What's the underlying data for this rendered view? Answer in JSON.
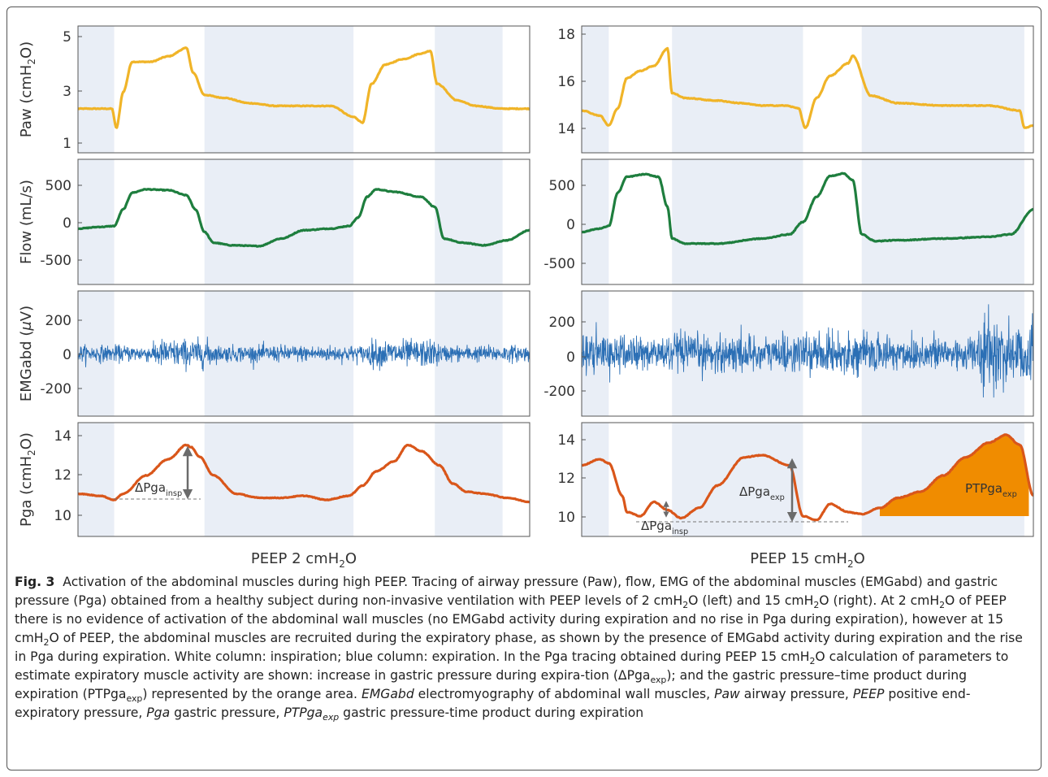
{
  "figure": {
    "colors": {
      "paw": "#f0b428",
      "flow": "#1e7e3e",
      "emg": "#2b6fb5",
      "pga": "#d9561a",
      "shade": "#e9eef6",
      "orange_area": "#f08c00"
    },
    "columns": [
      {
        "label_main": "PEEP 2 cmH",
        "label_sub": "2",
        "label_tail": "O",
        "expiration_bands_s": [
          [
            0,
            0.8
          ],
          [
            2.8,
            6.1
          ],
          [
            7.9,
            9.4
          ]
        ]
      },
      {
        "label_main": "PEEP 15 cmH",
        "label_sub": "2",
        "label_tail": "O",
        "expiration_bands_s": [
          [
            0,
            0.6
          ],
          [
            2.0,
            4.9
          ],
          [
            6.2,
            9.8
          ]
        ]
      }
    ],
    "rows": [
      {
        "id": "paw",
        "ylabel_main": "Paw (cmH",
        "ylabel_sub": "2",
        "ylabel_tail": "O)",
        "left": {
          "yticks": [
            "5",
            "3",
            "1"
          ],
          "ylim": [
            0.8,
            5.4
          ]
        },
        "right": {
          "yticks": [
            "18",
            "16",
            "14"
          ],
          "ylim": [
            13.3,
            18.4
          ]
        }
      },
      {
        "id": "flow",
        "ylabel": "Flow (mL/s)",
        "left": {
          "yticks": [
            "500",
            "0",
            "-500"
          ],
          "ylim": [
            -750,
            750
          ]
        },
        "right": {
          "yticks": [
            "500",
            "0",
            "-500"
          ],
          "ylim": [
            -750,
            750
          ]
        }
      },
      {
        "id": "emg",
        "ylabel_main": "EMGabd (",
        "ylabel_mu": "μ",
        "ylabel_tail": "V)",
        "left": {
          "yticks": [
            "200",
            "0",
            "-200"
          ],
          "ylim": [
            -340,
            340
          ]
        },
        "right": {
          "yticks": [
            "200",
            "0",
            "-200"
          ],
          "ylim": [
            -340,
            340
          ]
        }
      },
      {
        "id": "pga",
        "ylabel_main": "Pga (cmH",
        "ylabel_sub": "2",
        "ylabel_tail": "O)",
        "left": {
          "yticks": [
            "14",
            "12",
            "10"
          ],
          "ylim": [
            9.0,
            14.6
          ]
        },
        "right": {
          "yticks": [
            "14",
            "12",
            "10"
          ],
          "ylim": [
            9.0,
            14.6
          ]
        }
      }
    ],
    "annotations": {
      "left_dpga": "ΔPga",
      "left_dpga_sub": "insp",
      "right_dpga_exp": "ΔPga",
      "right_dpga_exp_sub": "exp",
      "right_dpga_insp": "ΔPga",
      "right_dpga_insp_sub": "insp",
      "right_ptp": "PTPga",
      "right_ptp_sub": "exp"
    }
  },
  "chart_data": [
    {
      "type": "line",
      "title": "PEEP 2 cmH2O",
      "series": [
        {
          "name": "Paw",
          "x": [
            0,
            0.2,
            0.5,
            0.75,
            0.85,
            1.0,
            1.2,
            1.6,
            2.0,
            2.4,
            2.55,
            2.8,
            3.2,
            3.8,
            4.4,
            5.0,
            5.6,
            6.1,
            6.3,
            6.5,
            6.8,
            7.2,
            7.6,
            7.8,
            7.95,
            8.4,
            8.8,
            9.4,
            10
          ],
          "y": [
            2.4,
            2.4,
            2.4,
            2.4,
            1.7,
            3.0,
            4.1,
            4.1,
            4.3,
            4.6,
            3.7,
            2.9,
            2.8,
            2.6,
            2.5,
            2.5,
            2.5,
            2.1,
            1.9,
            3.3,
            4.0,
            4.2,
            4.4,
            4.5,
            3.3,
            2.7,
            2.5,
            2.4,
            2.4
          ]
        },
        {
          "name": "Flow",
          "x": [
            0,
            0.5,
            0.8,
            1.0,
            1.2,
            1.5,
            2.0,
            2.4,
            2.6,
            2.8,
            3.0,
            3.4,
            4.0,
            4.5,
            5.0,
            5.6,
            6.0,
            6.2,
            6.4,
            6.6,
            7.0,
            7.6,
            7.9,
            8.1,
            8.5,
            9.0,
            9.5,
            10
          ],
          "y": [
            -80,
            -60,
            -50,
            150,
            350,
            390,
            380,
            320,
            150,
            -120,
            -250,
            -280,
            -290,
            -200,
            -100,
            -80,
            -50,
            50,
            300,
            390,
            360,
            300,
            180,
            -200,
            -250,
            -280,
            -220,
            -100
          ]
        },
        {
          "name": "EMGabd",
          "note": "noise-like signal, amplitude about ±50 μV with bursts up to about ±120 μV around x≈1.8–3.0 s and x≈6.5–8.0 s"
        },
        {
          "name": "Pga",
          "x": [
            0,
            0.5,
            0.8,
            1.0,
            1.5,
            2.0,
            2.4,
            2.5,
            2.7,
            3.0,
            3.5,
            4.0,
            4.5,
            5.0,
            5.5,
            6.0,
            6.3,
            6.6,
            7.0,
            7.3,
            7.6,
            8.0,
            8.3,
            8.6,
            9.0,
            9.5,
            10
          ],
          "y": [
            11.1,
            11.0,
            10.8,
            11.1,
            12.0,
            12.8,
            13.5,
            13.4,
            12.9,
            12.0,
            11.1,
            10.9,
            10.9,
            11.0,
            10.8,
            11.0,
            11.5,
            12.2,
            12.7,
            13.5,
            13.2,
            12.5,
            11.6,
            11.2,
            11.1,
            10.9,
            10.7
          ]
        }
      ]
    },
    {
      "type": "line",
      "title": "PEEP 15 cmH2O",
      "series": [
        {
          "name": "Paw",
          "x": [
            0,
            0.4,
            0.6,
            0.8,
            1.0,
            1.3,
            1.6,
            1.9,
            2.0,
            2.3,
            3.0,
            3.5,
            4.0,
            4.5,
            4.8,
            4.95,
            5.2,
            5.5,
            5.9,
            6.0,
            6.4,
            7.0,
            8.0,
            9.0,
            9.7,
            9.8,
            10
          ],
          "y": [
            15.0,
            14.8,
            14.4,
            15.1,
            16.3,
            16.6,
            16.8,
            17.5,
            15.7,
            15.5,
            15.4,
            15.3,
            15.2,
            15.2,
            15.1,
            14.3,
            15.5,
            16.4,
            16.9,
            17.2,
            15.6,
            15.3,
            15.2,
            15.2,
            15.0,
            14.3,
            14.4
          ]
        },
        {
          "name": "Flow",
          "x": [
            0,
            0.4,
            0.6,
            0.8,
            1.0,
            1.4,
            1.7,
            1.9,
            2.0,
            2.3,
            3.0,
            4.0,
            4.6,
            4.9,
            5.2,
            5.5,
            5.8,
            6.0,
            6.2,
            6.5,
            7.0,
            8.0,
            9.0,
            9.5,
            10
          ],
          "y": [
            -120,
            -80,
            -50,
            350,
            540,
            570,
            540,
            180,
            -200,
            -260,
            -260,
            -200,
            -150,
            0,
            300,
            550,
            580,
            500,
            -150,
            -230,
            -220,
            -200,
            -180,
            -150,
            150
          ]
        },
        {
          "name": "EMGabd",
          "note": "noise-like signal, amplitude about ±150 μV throughout, increasing to about ±340 μV at x≈9–10 s"
        },
        {
          "name": "Pga",
          "x": [
            0,
            0.4,
            0.6,
            0.9,
            1.0,
            1.3,
            1.6,
            1.9,
            2.2,
            2.6,
            3.0,
            3.6,
            4.0,
            4.6,
            4.9,
            5.2,
            5.5,
            5.9,
            6.2,
            6.6,
            7.0,
            7.5,
            8.0,
            8.5,
            9.0,
            9.4,
            9.7,
            10
          ],
          "y": [
            12.5,
            12.8,
            12.6,
            11.0,
            10.2,
            10.0,
            10.7,
            10.3,
            9.9,
            10.4,
            11.5,
            12.9,
            13.0,
            12.5,
            10.0,
            9.8,
            10.6,
            10.2,
            10.1,
            10.4,
            10.9,
            11.2,
            12.0,
            12.9,
            13.6,
            14.0,
            13.5,
            11.0
          ]
        }
      ]
    }
  ],
  "caption": {
    "fig_label": "Fig. 3",
    "s1": "Activation of the abdominal muscles during high PEEP. Tracing of airway pressure (Paw), flow, EMG of the abdominal muscles (EMGabd) and gastric pressure (Pga) obtained from a healthy subject during non-invasive ventilation with PEEP levels of 2 cmH",
    "s2": "O (left) and 15 cmH",
    "s3": "O (right). At 2 cmH",
    "s4": "O of PEEP there is no evidence of activation of the abdominal wall muscles (no EMGabd activity during expiration and no rise in Pga during expiration), however at 15 cmH",
    "s5": "O of PEEP, the abdominal muscles are recruited during the expiratory phase, as shown by the presence of EMGabd activity during expiration and the rise in Pga during expiration. White column: inspiration; blue column: expiration. In the Pga tracing obtained during PEEP 15 cmH",
    "s6": "O calculation of parameters to estimate expiratory muscle activity are shown: increase in gastric pressure during expira-tion (ΔPga",
    "s6_sub": "exp",
    "s7": "); and the gastric pressure–time product during expiration (PTPga",
    "s7_sub": "exp",
    "s8": ") represented by the orange area.",
    "abbr": [
      {
        "term": "EMGabd",
        "def": " electromyography of abdominal wall muscles, "
      },
      {
        "term": "Paw",
        "def": " airway pressure, "
      },
      {
        "term": "PEEP",
        "def": " positive end-expiratory pressure, "
      },
      {
        "term": "Pga",
        "def": " gastric pressure, "
      },
      {
        "term": "PTPga",
        "term_sub": "exp",
        "def": " gastric pressure-time product during expiration"
      }
    ],
    "sub2": "2"
  }
}
